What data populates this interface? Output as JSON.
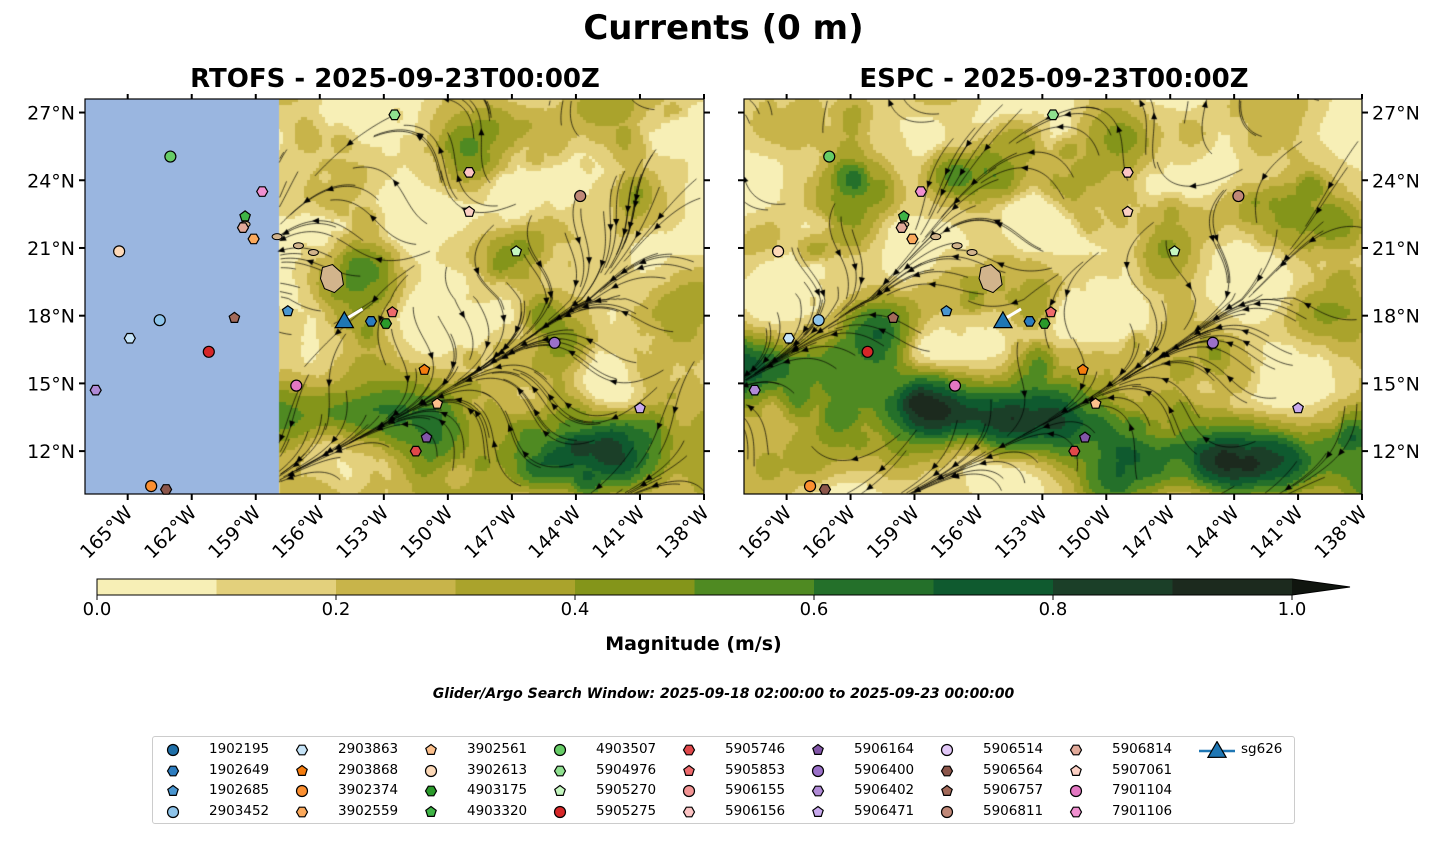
{
  "title": "Currents (0 m)",
  "panels": [
    {
      "title": "RTOFS - 2025-09-23T00:00Z",
      "model": "RTOFS"
    },
    {
      "title": "ESPC - 2025-09-23T00:00Z",
      "model": "ESPC"
    }
  ],
  "lon_ticks": [
    "165°W",
    "162°W",
    "159°W",
    "156°W",
    "153°W",
    "150°W",
    "147°W",
    "144°W",
    "141°W",
    "138°W"
  ],
  "lon_values": [
    -165,
    -162,
    -159,
    -156,
    -153,
    -150,
    -147,
    -144,
    -141,
    -138
  ],
  "lat_ticks": [
    "27°N",
    "24°N",
    "21°N",
    "18°N",
    "15°N",
    "12°N"
  ],
  "lat_values": [
    27,
    24,
    21,
    18,
    15,
    12
  ],
  "extent": {
    "lon": [
      -167,
      -138
    ],
    "lat": [
      10.1,
      27.6
    ]
  },
  "colorbar": {
    "label": "Magnitude (m/s)",
    "ticks": [
      "0.0",
      "0.2",
      "0.4",
      "0.6",
      "0.8",
      "1.0"
    ],
    "tick_values": [
      0,
      0.2,
      0.4,
      0.6,
      0.8,
      1.0
    ],
    "range": [
      0,
      1
    ],
    "extend": "max",
    "colors": [
      "#f7efb6",
      "#e3d07c",
      "#c8b44a",
      "#aaa32c",
      "#84951a",
      "#4f8a22",
      "#24702a",
      "#0f5a2f",
      "#1b3f28",
      "#1c2a1e"
    ]
  },
  "search_window": "Glider/Argo Search Window: 2025-09-18 02:00:00 to 2025-09-23 00:00:00",
  "legend": [
    {
      "id": "1902195",
      "marker": "circle",
      "color": "#1f6fa8"
    },
    {
      "id": "1902649",
      "marker": "hexagon",
      "color": "#2c7cbf"
    },
    {
      "id": "1902685",
      "marker": "pentagon",
      "color": "#4a96d0"
    },
    {
      "id": "2903452",
      "marker": "circle",
      "color": "#8ec4ea"
    },
    {
      "id": "2903863",
      "marker": "hexagon",
      "color": "#c6e4f8"
    },
    {
      "id": "2903868",
      "marker": "pentagon",
      "color": "#f57c0e"
    },
    {
      "id": "3902374",
      "marker": "circle",
      "color": "#fb8f30"
    },
    {
      "id": "3902559",
      "marker": "hexagon",
      "color": "#fba95c"
    },
    {
      "id": "3902561",
      "marker": "pentagon",
      "color": "#fcc08c"
    },
    {
      "id": "3902613",
      "marker": "circle",
      "color": "#fdd9b8"
    },
    {
      "id": "4903175",
      "marker": "hexagon",
      "color": "#2a9a2a"
    },
    {
      "id": "4903320",
      "marker": "pentagon",
      "color": "#3fb446"
    },
    {
      "id": "4903507",
      "marker": "circle",
      "color": "#66cc66"
    },
    {
      "id": "5904976",
      "marker": "hexagon",
      "color": "#8fe08f"
    },
    {
      "id": "5905270",
      "marker": "pentagon",
      "color": "#c5f7c0"
    },
    {
      "id": "5905275",
      "marker": "circle",
      "color": "#d62728"
    },
    {
      "id": "5905746",
      "marker": "hexagon",
      "color": "#e0484a"
    },
    {
      "id": "5905853",
      "marker": "pentagon",
      "color": "#ee6a6c"
    },
    {
      "id": "5906155",
      "marker": "circle",
      "color": "#f29494"
    },
    {
      "id": "5906156",
      "marker": "hexagon",
      "color": "#fcc4c4"
    },
    {
      "id": "5906164",
      "marker": "pentagon",
      "color": "#8256a8"
    },
    {
      "id": "5906400",
      "marker": "circle",
      "color": "#9a70c8"
    },
    {
      "id": "5906402",
      "marker": "hexagon",
      "color": "#b08ad6"
    },
    {
      "id": "5906471",
      "marker": "pentagon",
      "color": "#c9aaee"
    },
    {
      "id": "5906514",
      "marker": "circle",
      "color": "#e2c8f8"
    },
    {
      "id": "5906564",
      "marker": "hexagon",
      "color": "#8c564b"
    },
    {
      "id": "5906757",
      "marker": "pentagon",
      "color": "#a36a5a"
    },
    {
      "id": "5906811",
      "marker": "circle",
      "color": "#c08878"
    },
    {
      "id": "5906814",
      "marker": "hexagon",
      "color": "#e2aa9a"
    },
    {
      "id": "5907061",
      "marker": "pentagon",
      "color": "#fcd0c4"
    },
    {
      "id": "7901104",
      "marker": "circle",
      "color": "#e377c2"
    },
    {
      "id": "7901106",
      "marker": "hexagon",
      "color": "#f090d0"
    },
    {
      "id": "sg626",
      "marker": "triangle",
      "color": "#1f77b4"
    }
  ],
  "positions": [
    {
      "id": "4903507",
      "lon": -163.0,
      "lat": 25.05
    },
    {
      "id": "7901106",
      "lon": -158.7,
      "lat": 23.5
    },
    {
      "id": "4903320",
      "lon": -159.5,
      "lat": 22.4
    },
    {
      "id": "5906814",
      "lon": -159.6,
      "lat": 21.9
    },
    {
      "id": "3902559",
      "lon": -159.1,
      "lat": 21.4
    },
    {
      "id": "3902613",
      "lon": -165.4,
      "lat": 20.85
    },
    {
      "id": "2903452",
      "lon": -163.5,
      "lat": 17.8
    },
    {
      "id": "2903863",
      "lon": -164.9,
      "lat": 17.0
    },
    {
      "id": "5906757",
      "lon": -160.0,
      "lat": 17.9
    },
    {
      "id": "5905275",
      "lon": -161.2,
      "lat": 16.4
    },
    {
      "id": "5906402",
      "lon": -166.5,
      "lat": 14.7
    },
    {
      "id": "3902374",
      "lon": -163.9,
      "lat": 10.45
    },
    {
      "id": "5906564",
      "lon": -163.2,
      "lat": 10.3
    },
    {
      "id": "1902685",
      "lon": -157.5,
      "lat": 18.2
    },
    {
      "id": "1902649",
      "lon": -153.6,
      "lat": 17.75
    },
    {
      "id": "4903175",
      "lon": -152.9,
      "lat": 17.65
    },
    {
      "id": "5905853",
      "lon": -152.6,
      "lat": 18.15
    },
    {
      "id": "7901104",
      "lon": -157.1,
      "lat": 14.9
    },
    {
      "id": "2903868",
      "lon": -151.1,
      "lat": 15.6
    },
    {
      "id": "3902561",
      "lon": -150.5,
      "lat": 14.1
    },
    {
      "id": "5906164",
      "lon": -151.0,
      "lat": 12.6
    },
    {
      "id": "5905746",
      "lon": -151.5,
      "lat": 12.0
    },
    {
      "id": "5904976",
      "lon": -152.5,
      "lat": 26.9
    },
    {
      "id": "5906156",
      "lon": -149.0,
      "lat": 24.35
    },
    {
      "id": "5907061",
      "lon": -149.0,
      "lat": 22.6
    },
    {
      "id": "5906811",
      "lon": -143.8,
      "lat": 23.3
    },
    {
      "id": "5905270",
      "lon": -146.8,
      "lat": 20.85
    },
    {
      "id": "5906400",
      "lon": -145.0,
      "lat": 16.8
    },
    {
      "id": "5906471",
      "lon": -141.0,
      "lat": 13.9
    },
    {
      "id": "sg626",
      "lon": -154.85,
      "lat": 17.8
    }
  ]
}
